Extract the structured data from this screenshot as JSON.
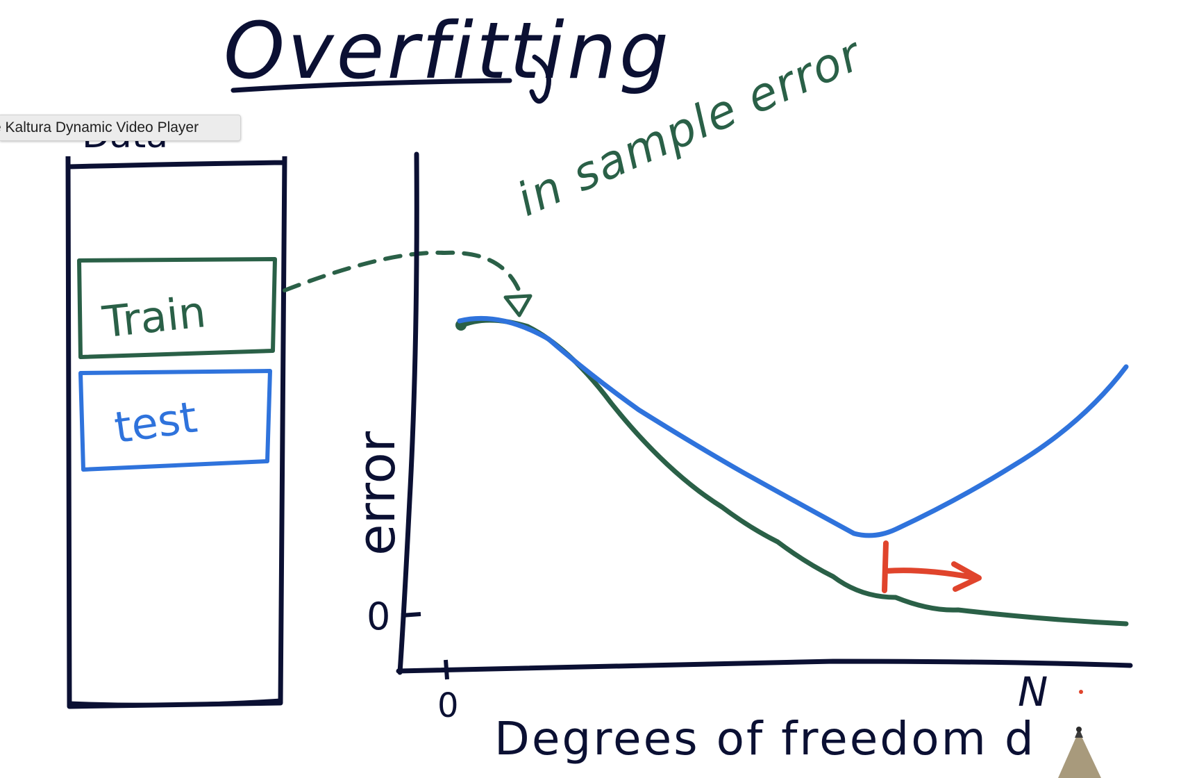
{
  "title": "Overfitting",
  "tooltip": {
    "text": "e Kaltura Dynamic Video Player"
  },
  "data_box": {
    "label_partial": "Data",
    "train_label": "Train",
    "test_label": "test"
  },
  "plot": {
    "y_axis_label": "error",
    "y_zero_label": "0",
    "x_zero_label": "0",
    "x_end_label": "N",
    "x_axis_label": "Degrees of freedom d",
    "curve_annotation": "in sample error"
  },
  "colors": {
    "ink": "#0b1033",
    "green": "#2a6047",
    "blue": "#2f73dc",
    "red": "#e0442c"
  },
  "icons": {
    "pen": "pen-tip-icon"
  }
}
